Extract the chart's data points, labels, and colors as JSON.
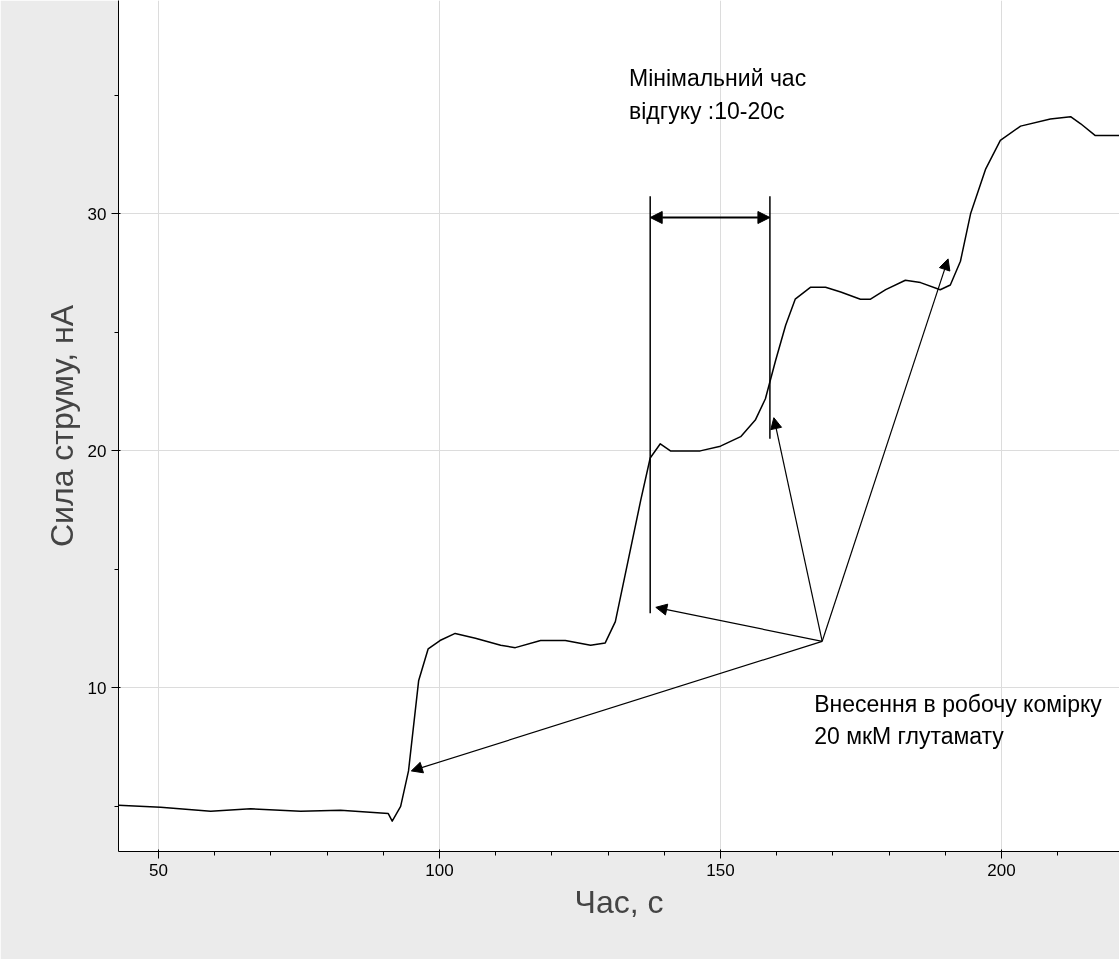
{
  "chart_data": {
    "type": "line",
    "xlabel": "Час, с",
    "ylabel": "Сила струму, нА",
    "xlim": [
      42.9,
      221
    ],
    "ylim": [
      3.1,
      39
    ],
    "xticks": [
      50,
      {
        "value": 60,
        "label": null
      },
      {
        "value": 70,
        "label": null
      },
      {
        "value": 80,
        "label": null
      },
      {
        "value": 90,
        "label": null
      },
      100,
      {
        "value": 110,
        "label": null
      },
      {
        "value": 120,
        "label": null
      },
      {
        "value": 130,
        "label": null
      },
      {
        "value": 140,
        "label": null
      },
      150,
      {
        "value": 160,
        "label": null
      },
      {
        "value": 170,
        "label": null
      },
      {
        "value": 180,
        "label": null
      },
      {
        "value": 190,
        "label": null
      },
      200,
      {
        "value": 210,
        "label": null
      }
    ],
    "yticks": [
      {
        "value": 5,
        "label": null
      },
      10,
      {
        "value": 15,
        "label": null
      },
      20,
      {
        "value": 25,
        "label": null
      },
      30,
      {
        "value": 35,
        "label": null
      }
    ],
    "grid": true,
    "marker": "none",
    "line_style": "solid",
    "series": [
      {
        "color": "#000000",
        "x": [
          42.9,
          50.4,
          59.3,
          66.4,
          75.3,
          82.4,
          90.9,
          91.6,
          93.1,
          94.5,
          96.3,
          98.0,
          100.1,
          102.8,
          106.4,
          110.9,
          113.5,
          118.0,
          122.4,
          126.9,
          129.5,
          131.3,
          133.6,
          135.8,
          137.5,
          139.3,
          141.1,
          146.4,
          150.0,
          153.6,
          156.2,
          158.0,
          159.8,
          161.6,
          163.3,
          166.0,
          168.7,
          171.4,
          174.9,
          176.7,
          179.4,
          182.9,
          185.6,
          189.1,
          190.9,
          192.7,
          194.5,
          197.2,
          199.8,
          203.4,
          208.7,
          212.3,
          214.1,
          216.7,
          221.0
        ],
        "values": [
          5.05,
          4.97,
          4.8,
          4.9,
          4.8,
          4.84,
          4.7,
          4.38,
          5.0,
          6.5,
          10.3,
          11.65,
          12.0,
          12.3,
          12.1,
          11.8,
          11.7,
          12.0,
          12.0,
          11.8,
          11.9,
          12.8,
          15.4,
          17.9,
          19.7,
          20.3,
          20.0,
          20.0,
          20.2,
          20.6,
          21.3,
          22.2,
          23.8,
          25.3,
          26.4,
          26.9,
          26.9,
          26.7,
          26.4,
          26.4,
          26.8,
          27.2,
          27.1,
          26.8,
          27.0,
          28.0,
          30.0,
          31.9,
          33.1,
          33.7,
          34.0,
          34.1,
          33.8,
          33.3,
          33.3
        ]
      }
    ],
    "ref_lines": [
      {
        "axis": "x",
        "value": 137.5,
        "color": "#000000"
      },
      {
        "axis": "x",
        "value": 158.8,
        "color": "#000000"
      }
    ],
    "annotations": [
      "Мінімальний час\nвідгуку :10-20с",
      "Внесення в робочу комірку\n20 мкМ глутамату"
    ]
  }
}
